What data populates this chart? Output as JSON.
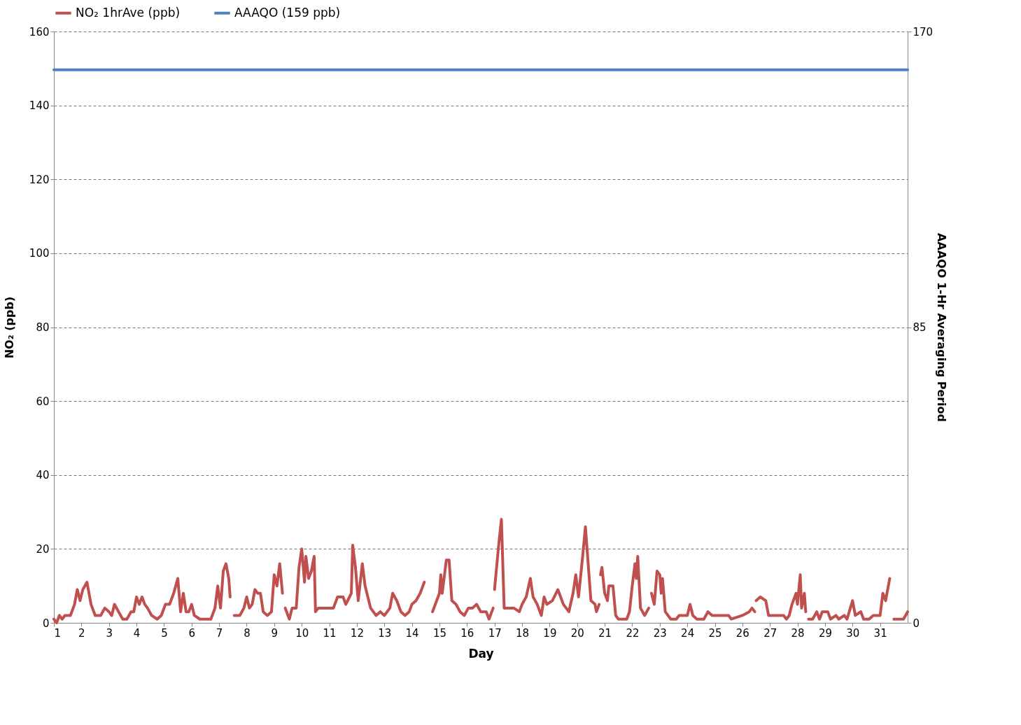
{
  "chart_data": {
    "type": "line",
    "xlabel": "Day",
    "ylabel": "NO₂ (ppb)",
    "y2label": "AAAQO 1-Hr Averaging Period",
    "xlim": [
      1,
      32
    ],
    "xticks": [
      1,
      2,
      3,
      4,
      5,
      6,
      7,
      8,
      9,
      10,
      11,
      12,
      13,
      14,
      15,
      16,
      17,
      18,
      19,
      20,
      21,
      22,
      23,
      24,
      25,
      26,
      27,
      28,
      29,
      30,
      31
    ],
    "ylim": [
      0,
      160
    ],
    "yticks": [
      0,
      20,
      40,
      60,
      80,
      100,
      120,
      140,
      160
    ],
    "y2lim": [
      0,
      170
    ],
    "y2ticks": [
      0,
      85,
      170
    ],
    "grid": "y",
    "legend": "top",
    "marker": "none",
    "line_style": "solid",
    "series": [
      {
        "name": "NO₂ 1hrAve (ppb)",
        "color": "#c0504d",
        "x": [
          1.0,
          1.1,
          1.2,
          1.3,
          1.4,
          1.6,
          1.75,
          1.85,
          1.95,
          2.05,
          2.2,
          2.35,
          2.5,
          2.7,
          2.85,
          3.0,
          3.1,
          3.2,
          3.35,
          3.5,
          3.65,
          3.8,
          3.9,
          4.0,
          4.1,
          4.2,
          4.3,
          4.4,
          4.55,
          4.75,
          4.9,
          5.05,
          5.2,
          5.35,
          5.5,
          5.6,
          5.7,
          5.8,
          5.9,
          6.0,
          6.1,
          6.3,
          6.5,
          6.7,
          6.85,
          6.95,
          7.05,
          7.15,
          7.25,
          7.35,
          7.4,
          7.5,
          7.55,
          7.75,
          7.9,
          8.0,
          8.1,
          8.2,
          8.3,
          8.4,
          8.5,
          8.6,
          8.75,
          8.9,
          9.0,
          9.1,
          9.2,
          9.3,
          9.35,
          9.4,
          9.55,
          9.65,
          9.8,
          9.9,
          10.0,
          10.1,
          10.15,
          10.25,
          10.35,
          10.45,
          10.5,
          10.6,
          11.0,
          11.15,
          11.3,
          11.5,
          11.6,
          11.8,
          11.85,
          11.95,
          12.05,
          12.2,
          12.3,
          12.5,
          12.7,
          12.85,
          13.0,
          13.2,
          13.3,
          13.45,
          13.6,
          13.75,
          13.9,
          14.0,
          14.15,
          14.3,
          14.45,
          14.6,
          14.75,
          14.9,
          15.0,
          15.05,
          15.1,
          15.25,
          15.35,
          15.45,
          15.6,
          15.75,
          15.9,
          16.05,
          16.2,
          16.35,
          16.5,
          16.7,
          16.8,
          16.9,
          16.95,
          16.98,
          17.0,
          17.15,
          17.25,
          17.35,
          17.7,
          17.9,
          18.0,
          18.15,
          18.3,
          18.4,
          18.55,
          18.7,
          18.8,
          18.9,
          19.1,
          19.3,
          19.4,
          19.5,
          19.7,
          19.85,
          19.95,
          20.05,
          20.2,
          20.3,
          20.5,
          20.65,
          20.7,
          20.8,
          20.82,
          20.85,
          20.9,
          21.0,
          21.1,
          21.15,
          21.3,
          21.4,
          21.5,
          21.8,
          21.9,
          22.0,
          22.1,
          22.15,
          22.2,
          22.3,
          22.45,
          22.6,
          22.65,
          22.7,
          22.8,
          22.9,
          23.0,
          23.05,
          23.1,
          23.2,
          23.4,
          23.6,
          23.7,
          24.0,
          24.1,
          24.2,
          24.35,
          24.6,
          24.75,
          24.9,
          25.5,
          25.6,
          26.0,
          26.25,
          26.35,
          26.45,
          26.48,
          26.5,
          26.65,
          26.85,
          26.95,
          27.3,
          27.5,
          27.6,
          27.7,
          27.8,
          27.95,
          28.0,
          28.1,
          28.15,
          28.25,
          28.3,
          28.35,
          28.4,
          28.55,
          28.7,
          28.8,
          28.9,
          29.1,
          29.2,
          29.4,
          29.5,
          29.7,
          29.8,
          30.0,
          30.1,
          30.3,
          30.4,
          30.6,
          30.75,
          31.0,
          31.1,
          31.2,
          31.35,
          31.42,
          31.5,
          31.85,
          32.0
        ],
        "values": [
          1,
          0,
          2,
          1,
          2,
          2,
          5,
          9,
          6,
          9,
          11,
          5,
          2,
          2,
          4,
          3,
          2,
          5,
          3,
          1,
          1,
          3,
          3,
          7,
          5,
          7,
          5,
          4,
          2,
          1,
          2,
          5,
          5,
          8,
          12,
          3,
          8,
          3,
          3,
          5,
          2,
          1,
          1,
          1,
          4,
          10,
          4,
          14,
          16,
          12,
          7,
          null,
          2,
          2,
          4,
          7,
          4,
          5,
          9,
          8,
          8,
          3,
          2,
          3,
          13,
          10,
          16,
          8,
          null,
          4,
          1,
          4,
          4,
          15,
          20,
          11,
          18,
          12,
          14,
          18,
          3,
          4,
          4,
          4,
          7,
          7,
          5,
          8,
          21,
          15,
          6,
          16,
          10,
          4,
          2,
          3,
          2,
          4,
          8,
          6,
          3,
          2,
          3,
          5,
          6,
          8,
          11,
          null,
          3,
          6,
          8,
          13,
          8,
          17,
          17,
          6,
          5,
          3,
          2,
          4,
          4,
          5,
          3,
          3,
          1,
          3,
          4,
          null,
          9,
          21,
          28,
          4,
          4,
          3,
          5,
          7,
          12,
          7,
          5,
          2,
          7,
          5,
          6,
          9,
          7,
          5,
          3,
          8,
          13,
          7,
          18,
          26,
          6,
          5,
          3,
          5,
          null,
          13,
          15,
          8,
          6,
          10,
          10,
          2,
          1,
          1,
          3,
          10,
          16,
          12,
          18,
          4,
          2,
          4,
          null,
          8,
          5,
          14,
          13,
          8,
          12,
          3,
          1,
          1,
          2,
          2,
          5,
          2,
          1,
          1,
          3,
          2,
          2,
          1,
          2,
          3,
          4,
          3,
          null,
          6,
          7,
          6,
          2,
          2,
          2,
          1,
          2,
          5,
          8,
          5,
          13,
          4,
          8,
          3,
          null,
          1,
          1,
          3,
          1,
          3,
          3,
          1,
          2,
          1,
          2,
          1,
          6,
          2,
          3,
          1,
          1,
          2,
          2,
          8,
          6,
          12,
          null,
          1,
          1,
          3
        ]
      },
      {
        "name": "AAAQO (159 ppb)",
        "color": "#4f81bd",
        "axis": "y2",
        "x": [
          1,
          32
        ],
        "values": [
          159,
          159
        ]
      }
    ]
  }
}
